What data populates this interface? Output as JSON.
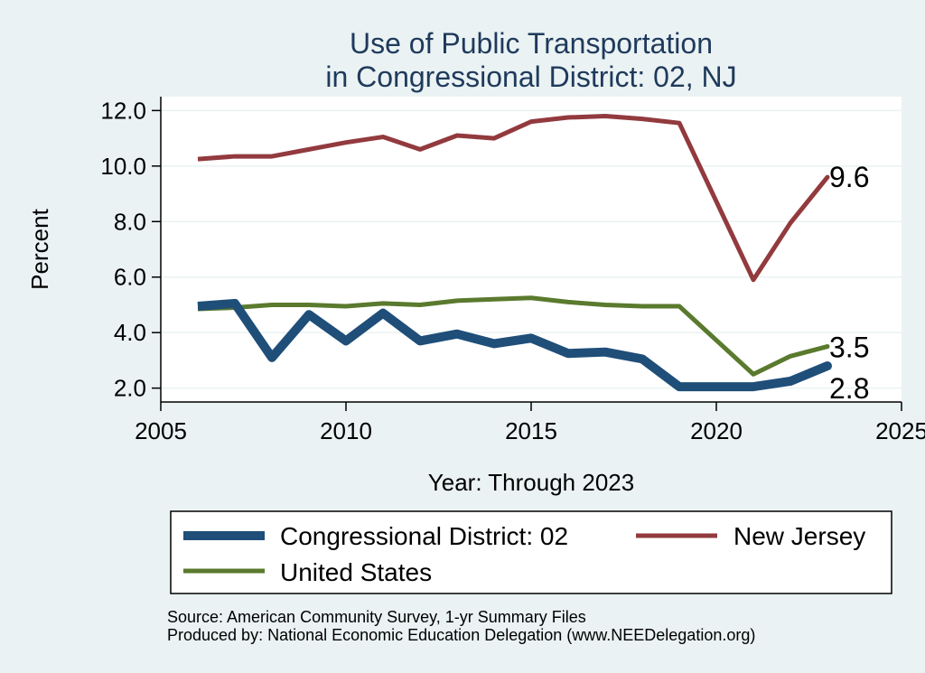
{
  "chart_data": {
    "type": "line",
    "title": [
      "Use of Public Transportation",
      "in Congressional District: 02, NJ"
    ],
    "xlabel": "Year: Through 2023",
    "ylabel": "Percent",
    "xlim": [
      2005,
      2025
    ],
    "ylim": [
      1.5,
      12.5
    ],
    "xticks": [
      2005,
      2010,
      2015,
      2020,
      2025
    ],
    "yticks": [
      2.0,
      4.0,
      6.0,
      8.0,
      10.0,
      12.0
    ],
    "grid": true,
    "legend_position": "bottom",
    "x": [
      2006,
      2007,
      2008,
      2009,
      2010,
      2011,
      2012,
      2013,
      2014,
      2015,
      2016,
      2017,
      2018,
      2019,
      2021,
      2022,
      2023
    ],
    "series": [
      {
        "name": "Congressional District: 02",
        "color": "#1f4e79",
        "values": [
          4.95,
          5.05,
          3.1,
          4.65,
          3.7,
          4.7,
          3.7,
          3.95,
          3.6,
          3.8,
          3.25,
          3.3,
          3.05,
          2.05,
          2.05,
          2.25,
          2.8
        ],
        "end_label": "2.8"
      },
      {
        "name": "New Jersey",
        "color": "#923a3e",
        "values": [
          10.25,
          10.35,
          10.35,
          10.6,
          10.85,
          11.05,
          10.6,
          11.1,
          11.0,
          11.6,
          11.75,
          11.8,
          11.7,
          11.55,
          5.9,
          7.95,
          9.6
        ],
        "end_label": "9.6"
      },
      {
        "name": "United States",
        "color": "#5a7a2e",
        "values": [
          4.85,
          4.9,
          5.0,
          5.0,
          4.95,
          5.05,
          5.0,
          5.15,
          5.2,
          5.25,
          5.1,
          5.0,
          4.95,
          4.95,
          2.5,
          3.15,
          3.5
        ],
        "end_label": "3.5"
      }
    ]
  },
  "notes": {
    "source": "Source: American Community Survey, 1-yr Summary Files",
    "produced": "Produced by: National Economic Education Delegation (www.NEEDelegation.org)"
  }
}
